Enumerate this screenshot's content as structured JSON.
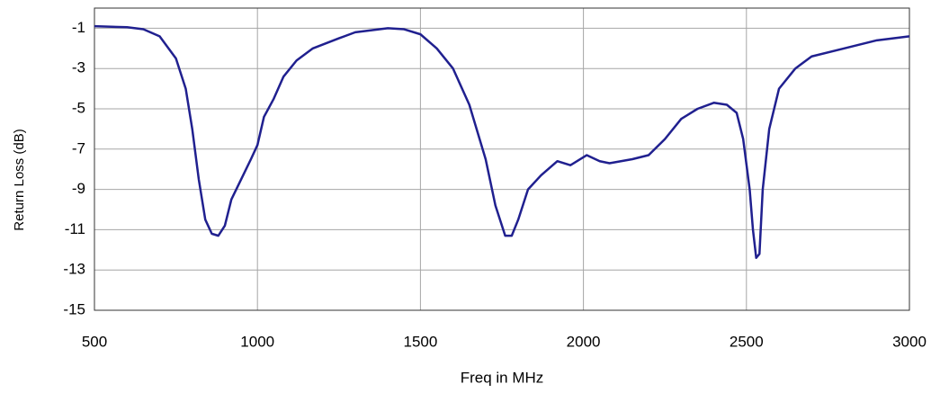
{
  "chart_data": {
    "type": "line",
    "xlabel": "Freq in MHz",
    "ylabel": "Return Loss (dB)",
    "xlim": [
      500,
      3000
    ],
    "xticks": [
      500,
      1000,
      1500,
      2000,
      2500,
      3000
    ],
    "ylim": [
      -15,
      0
    ],
    "yticks": [
      -1,
      -3,
      -5,
      -7,
      -9,
      -11,
      -13,
      -15
    ],
    "grid": true,
    "series": [
      {
        "color": "#20208f",
        "x": [
          500,
          600,
          650,
          700,
          750,
          780,
          800,
          820,
          840,
          860,
          880,
          900,
          920,
          950,
          980,
          1000,
          1020,
          1050,
          1080,
          1120,
          1170,
          1250,
          1300,
          1400,
          1450,
          1500,
          1550,
          1600,
          1650,
          1700,
          1730,
          1760,
          1780,
          1800,
          1830,
          1870,
          1920,
          1960,
          2010,
          2050,
          2080,
          2150,
          2200,
          2250,
          2300,
          2350,
          2400,
          2440,
          2470,
          2490,
          2510,
          2520,
          2530,
          2540,
          2550,
          2570,
          2600,
          2650,
          2700,
          2800,
          2900,
          3000
        ],
        "values": [
          -0.9,
          -0.95,
          -1.05,
          -1.4,
          -2.5,
          -4,
          -6,
          -8.5,
          -10.5,
          -11.2,
          -11.3,
          -10.8,
          -9.5,
          -8.5,
          -7.5,
          -6.8,
          -5.4,
          -4.5,
          -3.4,
          -2.6,
          -2,
          -1.5,
          -1.2,
          -1,
          -1.05,
          -1.3,
          -2,
          -3,
          -4.8,
          -7.5,
          -9.8,
          -11.3,
          -11.3,
          -10.5,
          -9,
          -8.3,
          -7.6,
          -7.8,
          -7.3,
          -7.6,
          -7.7,
          -7.5,
          -7.3,
          -6.5,
          -5.5,
          -5,
          -4.7,
          -4.8,
          -5.2,
          -6.5,
          -9,
          -11,
          -12.4,
          -12.2,
          -9,
          -6,
          -4,
          -3,
          -2.4,
          -2,
          -1.6,
          -1.4
        ]
      }
    ]
  }
}
